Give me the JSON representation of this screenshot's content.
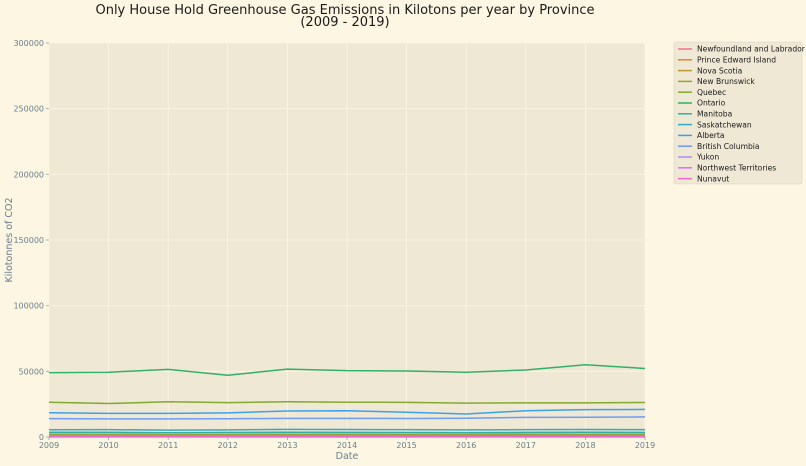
{
  "chart_data": {
    "type": "line",
    "title": "Only House Hold Greenhouse Gas Emissions in Kilotons per year by Province",
    "subtitle": "(2009 - 2019)",
    "xlabel": "Date",
    "ylabel": "Kilotonnes of CO2",
    "x": [
      2009,
      2010,
      2011,
      2012,
      2013,
      2014,
      2015,
      2016,
      2017,
      2018,
      2019
    ],
    "x_tick_labels": [
      "2009",
      "2010",
      "2011",
      "2012",
      "2013",
      "2014",
      "2015",
      "2016",
      "2017",
      "2018",
      "2019"
    ],
    "ylim": [
      0,
      300000
    ],
    "y_ticks": [
      0,
      50000,
      100000,
      150000,
      200000,
      250000,
      300000
    ],
    "y_tick_labels": [
      "0",
      "50000",
      "100000",
      "150000",
      "200000",
      "250000",
      "300000"
    ],
    "grid": true,
    "legend_position": "outside-top-right",
    "plot_background": "#eee8d5",
    "page_background": "#fdf6e3",
    "series": [
      {
        "name": "Newfoundland and Labrador",
        "color": "#f77189",
        "values": [
          1500,
          1500,
          1400,
          1400,
          1400,
          1400,
          1300,
          1300,
          1300,
          1300,
          1300
        ]
      },
      {
        "name": "Prince Edward Island",
        "color": "#e68332",
        "values": [
          500,
          500,
          500,
          500,
          500,
          500,
          500,
          500,
          500,
          500,
          500
        ]
      },
      {
        "name": "Nova Scotia",
        "color": "#bb9832",
        "values": [
          3500,
          3400,
          3200,
          3300,
          3200,
          3300,
          3200,
          3000,
          3100,
          3200,
          3100
        ]
      },
      {
        "name": "New Brunswick",
        "color": "#97a431",
        "values": [
          2000,
          1900,
          1800,
          1800,
          1800,
          1900,
          1800,
          1700,
          1800,
          1800,
          1800
        ]
      },
      {
        "name": "Quebec",
        "color": "#84a931",
        "values": [
          26500,
          25500,
          26800,
          26200,
          26800,
          26500,
          26400,
          25800,
          26000,
          26000,
          26300
        ]
      },
      {
        "name": "Ontario",
        "color": "#32b166",
        "values": [
          49000,
          49300,
          51500,
          47000,
          51700,
          50500,
          50300,
          49300,
          51000,
          55000,
          52200
        ]
      },
      {
        "name": "Manitoba",
        "color": "#36ada4",
        "values": [
          3500,
          3500,
          3200,
          3400,
          3600,
          3500,
          3400,
          3300,
          3500,
          3600,
          3500
        ]
      },
      {
        "name": "Saskatchewan",
        "color": "#38a9c5",
        "values": [
          5500,
          5600,
          5200,
          5400,
          5800,
          5700,
          5600,
          5400,
          5600,
          5700,
          5600
        ]
      },
      {
        "name": "Alberta",
        "color": "#3ba3ec",
        "values": [
          18500,
          18000,
          18000,
          18400,
          19800,
          20000,
          18800,
          17500,
          20000,
          20800,
          21000
        ]
      },
      {
        "name": "British Columbia",
        "color": "#6e9bf4",
        "values": [
          14000,
          13800,
          13800,
          13900,
          14200,
          14200,
          14100,
          14300,
          14900,
          15000,
          15300
        ]
      },
      {
        "name": "Yukon",
        "color": "#ad8cf4",
        "values": [
          200,
          200,
          200,
          200,
          200,
          200,
          200,
          200,
          200,
          200,
          200
        ]
      },
      {
        "name": "Northwest Territories",
        "color": "#e16cf4",
        "values": [
          300,
          300,
          300,
          300,
          300,
          300,
          300,
          300,
          300,
          300,
          300
        ]
      },
      {
        "name": "Nunavut",
        "color": "#f565cc",
        "values": [
          100,
          100,
          100,
          100,
          100,
          100,
          100,
          100,
          100,
          100,
          100
        ]
      }
    ]
  }
}
